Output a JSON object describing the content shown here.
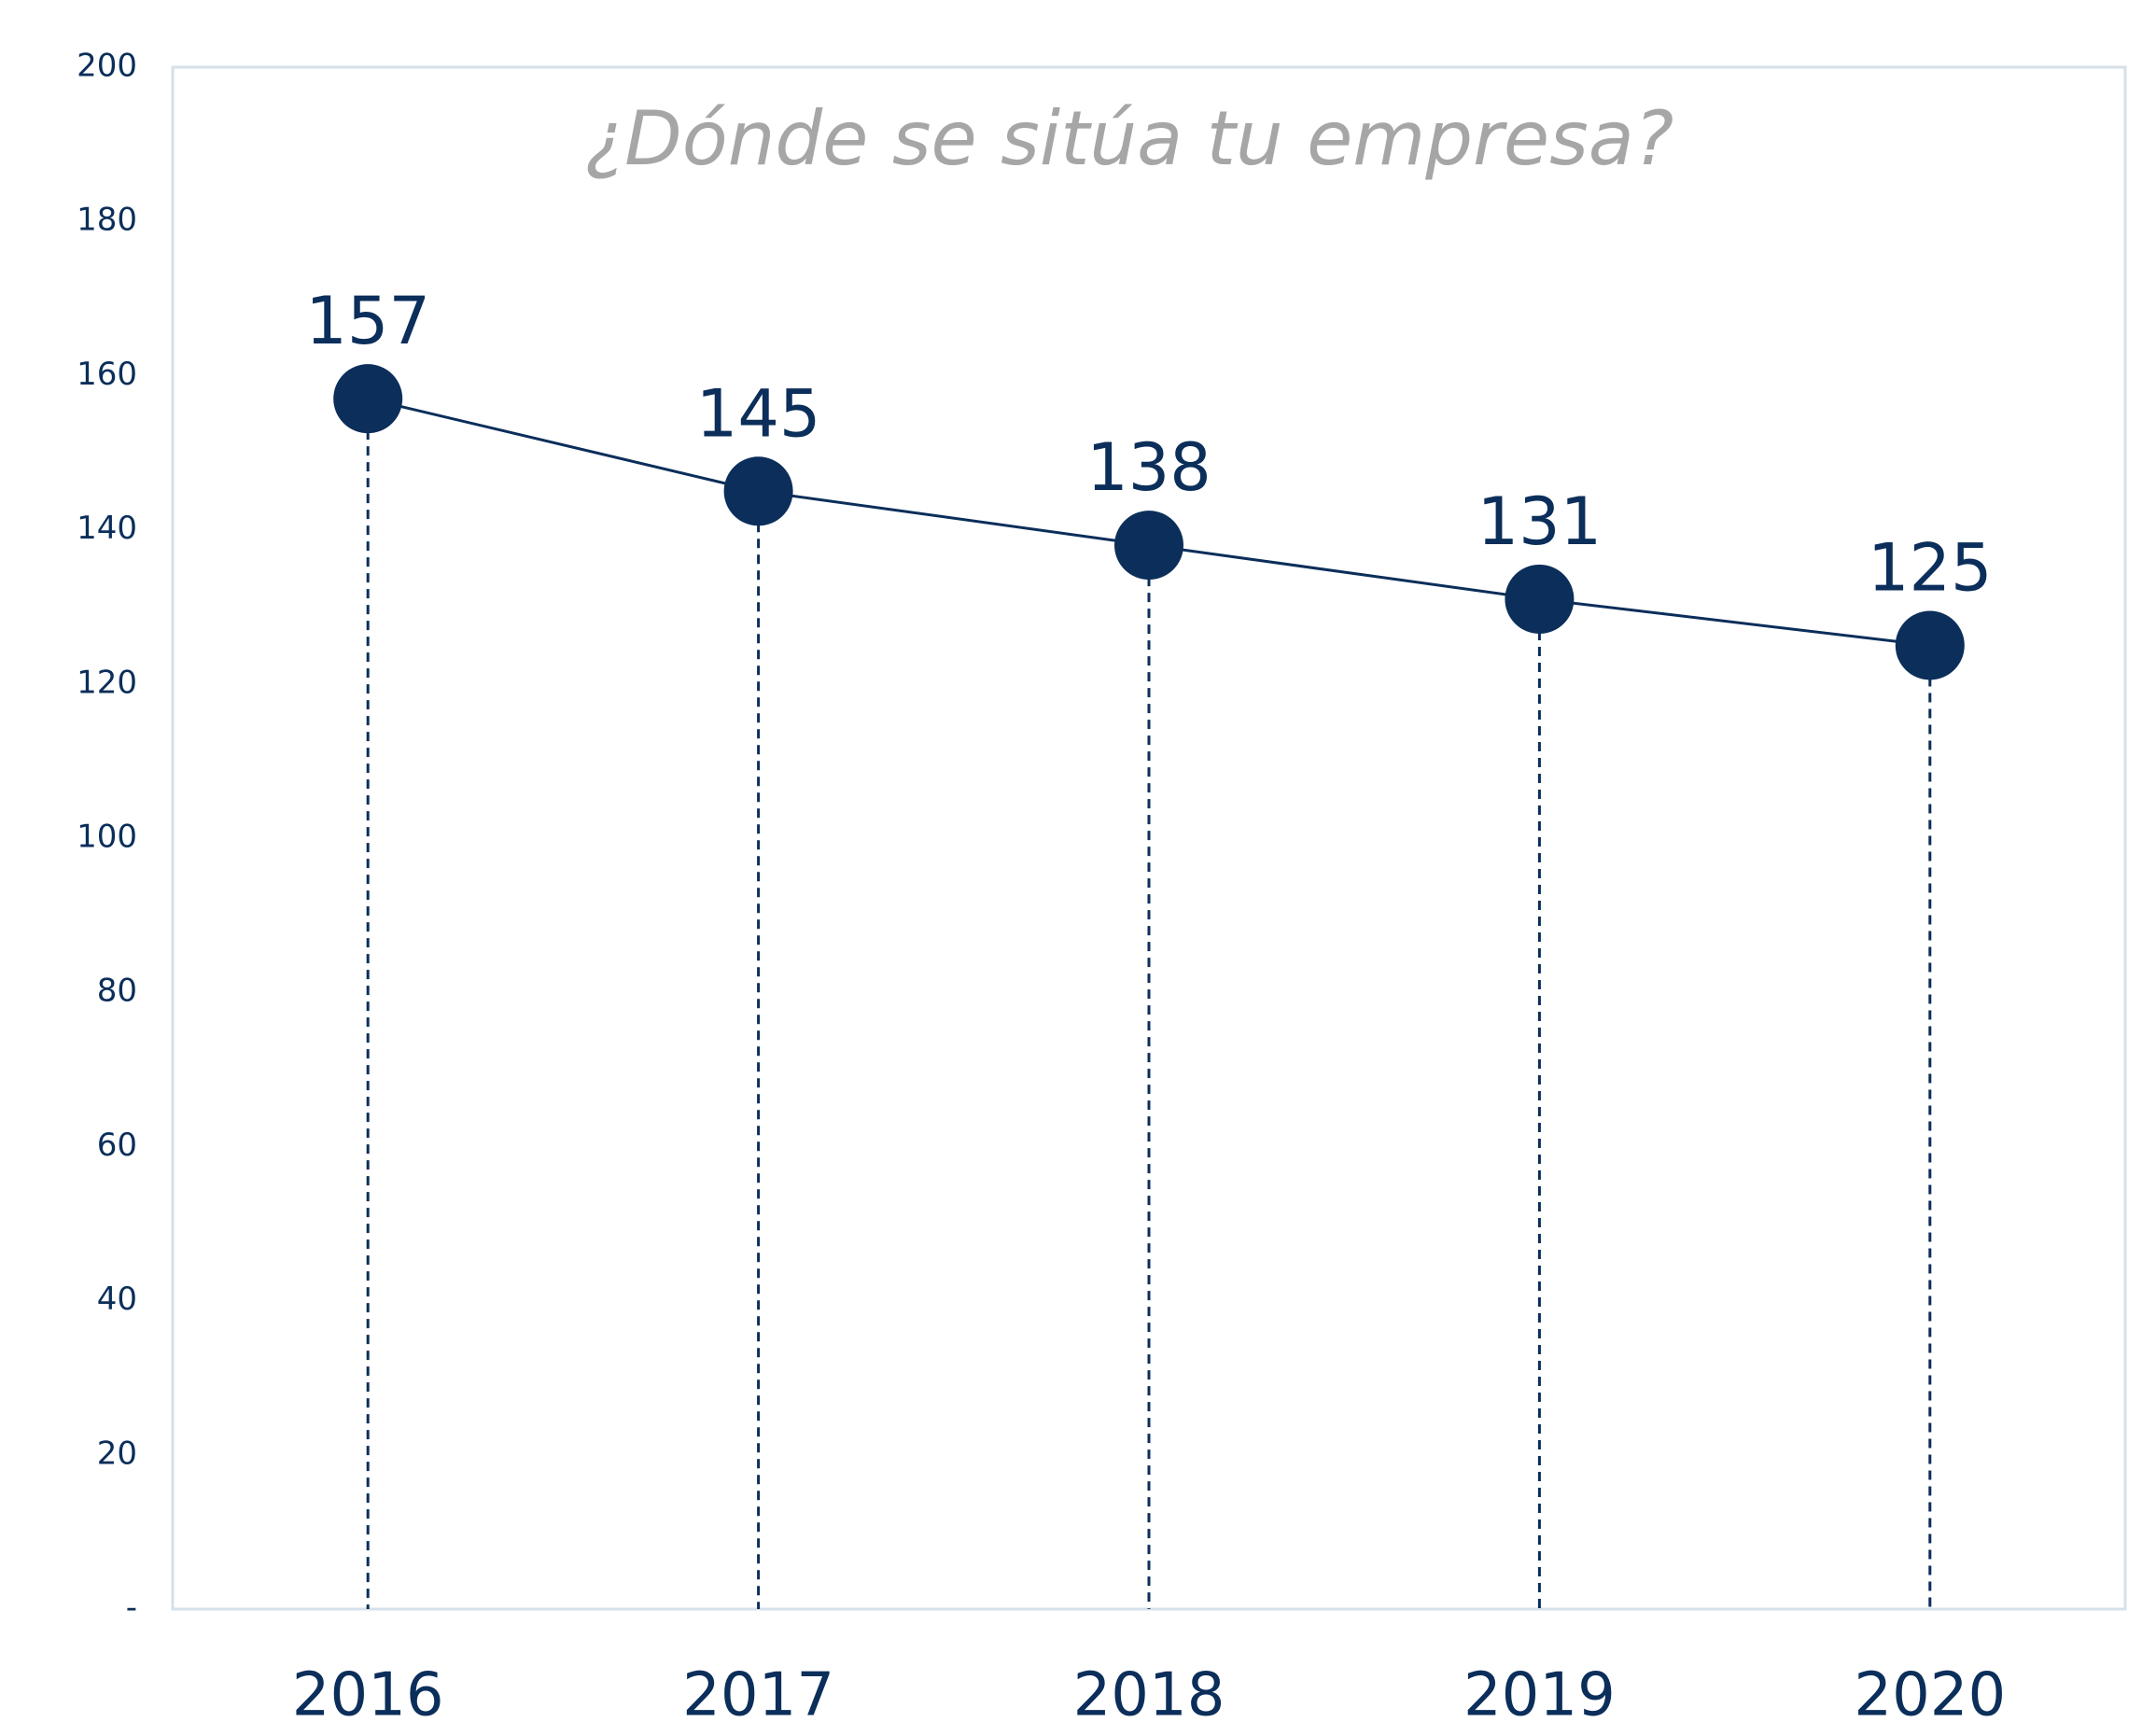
{
  "chart_data": {
    "type": "line",
    "title": "¿Dónde se sitúa tu empresa?",
    "categories": [
      "2016",
      "2017",
      "2018",
      "2019",
      "2020"
    ],
    "values": [
      157,
      145,
      138,
      131,
      125
    ],
    "color": "#0b2e5a",
    "ylim": [
      0,
      200
    ],
    "yticks": [
      {
        "value": 0,
        "label": "-"
      },
      20,
      40,
      60,
      80,
      100,
      120,
      140,
      160,
      180,
      200
    ],
    "grid": false
  }
}
